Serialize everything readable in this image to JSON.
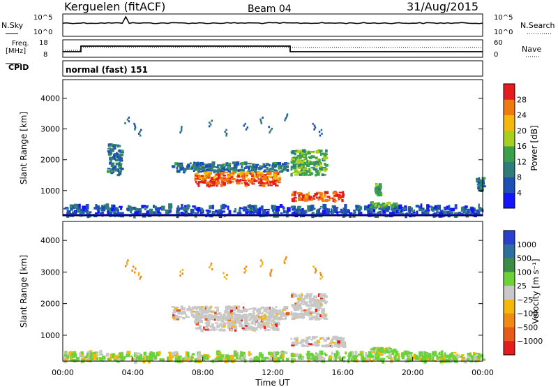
{
  "header": {
    "station": "Kerguelen (fitACF)",
    "beam": "Beam 04",
    "date": "31/Aug/2015"
  },
  "top_panels": {
    "noise_label": "N.Sky",
    "noise_ticks": [
      "10^5",
      "10^0"
    ],
    "noise_right_ticks": [
      "10^5",
      "10^0"
    ],
    "nsearch_label": "N.Search",
    "freq_label_line1": "Freq.",
    "freq_label_line2": "[MHz]",
    "freq_ticks": [
      "18",
      "8"
    ],
    "nave_ticks": [
      "60",
      "0"
    ],
    "nave_label": "Nave",
    "cpid_label": "CPID",
    "cpid_text": "normal (fast) 151"
  },
  "colors": {
    "power_scale": [
      "#1414ff",
      "#1e4fb4",
      "#2f7c7a",
      "#3aa04a",
      "#a8cf1e",
      "#f3b80a",
      "#f07a10",
      "#e51c1c"
    ],
    "velocity_scale": [
      "#2a3fd0",
      "#2f6fa0",
      "#3c8c46",
      "#6bd238",
      "#c8c8c8",
      "#f3b80a",
      "#f08a10",
      "#e85a1a",
      "#e51c1c"
    ],
    "ground_line": "#1a1aa0"
  },
  "chart_data": [
    {
      "type": "heatmap",
      "title": "Power",
      "ylabel": "Slant Range [km]",
      "ylim": [
        180,
        4600
      ],
      "xlim_hours": [
        0,
        24
      ],
      "yticks": [
        "1000",
        "2000",
        "3000",
        "4000"
      ],
      "colorbar_label": "Power [dB]",
      "colorbar_ticks": [
        "4",
        "8",
        "12",
        "16",
        "20",
        "24",
        "28"
      ],
      "colorbar_range": [
        0,
        30
      ],
      "regions": [
        {
          "name": "near-range clutter",
          "t0": 0,
          "t1": 24,
          "r0": 180,
          "r1": 500,
          "power": 6
        },
        {
          "name": "early patch",
          "t0": 2.5,
          "t1": 3.3,
          "r0": 1500,
          "r1": 2500,
          "power": 9
        },
        {
          "name": "upper band",
          "t0": 6.2,
          "t1": 12.8,
          "r0": 1600,
          "r1": 1900,
          "power": 8
        },
        {
          "name": "main echo",
          "t0": 7.5,
          "t1": 12.3,
          "r0": 1150,
          "r1": 1600,
          "power": 24
        },
        {
          "name": "post-gap arc",
          "t0": 13.0,
          "t1": 15.0,
          "r0": 1500,
          "r1": 2300,
          "power": 14
        },
        {
          "name": "lower strip",
          "t0": 13.0,
          "t1": 16.0,
          "r0": 650,
          "r1": 950,
          "power": 26
        },
        {
          "name": "small patch",
          "t0": 17.8,
          "t1": 18.1,
          "r0": 850,
          "r1": 1200,
          "power": 12
        },
        {
          "name": "late patch",
          "t0": 17.5,
          "t1": 19.0,
          "r0": 450,
          "r1": 600,
          "power": 14
        },
        {
          "name": "end patch",
          "t0": 23.6,
          "t1": 24,
          "r0": 1000,
          "r1": 1400,
          "power": 8
        }
      ]
    },
    {
      "type": "heatmap",
      "title": "Velocity",
      "ylabel": "Slant Range [km]",
      "xlabel": "Time UT",
      "ylim": [
        180,
        4600
      ],
      "xlim_hours": [
        0,
        24
      ],
      "yticks": [
        "1000",
        "2000",
        "3000",
        "4000"
      ],
      "xticks": [
        "00:00",
        "04:00",
        "08:00",
        "12:00",
        "16:00",
        "20:00",
        "00:00"
      ],
      "colorbar_label": "Velocity [m s⁻¹]",
      "colorbar_ticks": [
        "1000",
        "500",
        "100",
        "25",
        "−25",
        "−100",
        "−500",
        "−1000"
      ],
      "regions": [
        {
          "name": "near-range clutter",
          "t0": 0,
          "t1": 24,
          "r0": 180,
          "r1": 450,
          "velocity": 50
        },
        {
          "name": "upper band",
          "t0": 6.2,
          "t1": 12.8,
          "r0": 1500,
          "r1": 1900,
          "velocity": 0
        },
        {
          "name": "main echo",
          "t0": 7.5,
          "t1": 12.3,
          "r0": 1150,
          "r1": 1600,
          "velocity": 0
        },
        {
          "name": "post-gap arc",
          "t0": 13.0,
          "t1": 15.0,
          "r0": 1500,
          "r1": 2300,
          "velocity": 0
        },
        {
          "name": "lower strip",
          "t0": 13.0,
          "t1": 16.0,
          "r0": 650,
          "r1": 950,
          "velocity": 0
        },
        {
          "name": "late patch",
          "t0": 17.5,
          "t1": 19.0,
          "r0": 450,
          "r1": 600,
          "velocity": 60
        }
      ]
    }
  ]
}
